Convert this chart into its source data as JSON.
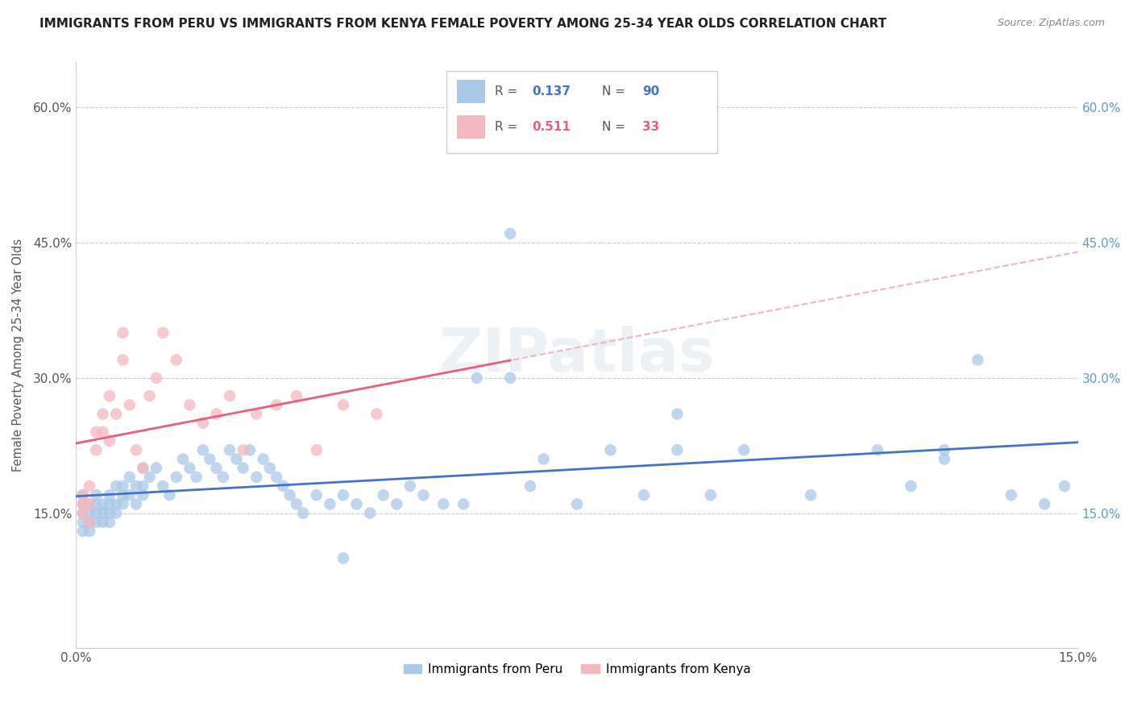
{
  "title": "IMMIGRANTS FROM PERU VS IMMIGRANTS FROM KENYA FEMALE POVERTY AMONG 25-34 YEAR OLDS CORRELATION CHART",
  "source": "Source: ZipAtlas.com",
  "ylabel": "Female Poverty Among 25-34 Year Olds",
  "xlim": [
    0.0,
    0.15
  ],
  "ylim": [
    0.0,
    0.65
  ],
  "x_tick_vals": [
    0.0,
    0.03,
    0.06,
    0.09,
    0.12,
    0.15
  ],
  "x_tick_labels": [
    "0.0%",
    "",
    "",
    "",
    "",
    "15.0%"
  ],
  "y_tick_vals": [
    0.0,
    0.15,
    0.3,
    0.45,
    0.6
  ],
  "y_tick_labels": [
    "",
    "15.0%",
    "30.0%",
    "45.0%",
    "60.0%"
  ],
  "background_color": "#ffffff",
  "grid_color": "#cccccc",
  "watermark": "ZIPatlas",
  "peru_color": "#a8c8e8",
  "kenya_color": "#f4b8c0",
  "peru_line_color": "#4472c4",
  "kenya_line_color": "#e8607a",
  "kenya_dash_color": "#f0a0b0",
  "R_peru": 0.137,
  "N_peru": 90,
  "R_kenya": 0.511,
  "N_kenya": 33,
  "peru_x": [
    0.001,
    0.001,
    0.001,
    0.001,
    0.001,
    0.002,
    0.002,
    0.002,
    0.002,
    0.003,
    0.003,
    0.003,
    0.003,
    0.004,
    0.004,
    0.004,
    0.005,
    0.005,
    0.005,
    0.005,
    0.006,
    0.006,
    0.006,
    0.007,
    0.007,
    0.007,
    0.008,
    0.008,
    0.009,
    0.009,
    0.01,
    0.01,
    0.01,
    0.011,
    0.012,
    0.013,
    0.014,
    0.015,
    0.016,
    0.017,
    0.018,
    0.019,
    0.02,
    0.021,
    0.022,
    0.023,
    0.024,
    0.025,
    0.026,
    0.027,
    0.028,
    0.029,
    0.03,
    0.031,
    0.032,
    0.033,
    0.034,
    0.036,
    0.038,
    0.04,
    0.042,
    0.044,
    0.046,
    0.048,
    0.05,
    0.052,
    0.055,
    0.058,
    0.06,
    0.065,
    0.068,
    0.07,
    0.075,
    0.08,
    0.085,
    0.09,
    0.095,
    0.1,
    0.11,
    0.12,
    0.125,
    0.13,
    0.135,
    0.14,
    0.145,
    0.148,
    0.065,
    0.09,
    0.13,
    0.04
  ],
  "peru_y": [
    0.15,
    0.14,
    0.16,
    0.13,
    0.17,
    0.15,
    0.14,
    0.16,
    0.13,
    0.16,
    0.15,
    0.14,
    0.17,
    0.15,
    0.16,
    0.14,
    0.17,
    0.15,
    0.14,
    0.16,
    0.18,
    0.16,
    0.15,
    0.17,
    0.18,
    0.16,
    0.19,
    0.17,
    0.18,
    0.16,
    0.2,
    0.18,
    0.17,
    0.19,
    0.2,
    0.18,
    0.17,
    0.19,
    0.21,
    0.2,
    0.19,
    0.22,
    0.21,
    0.2,
    0.19,
    0.22,
    0.21,
    0.2,
    0.22,
    0.19,
    0.21,
    0.2,
    0.19,
    0.18,
    0.17,
    0.16,
    0.15,
    0.17,
    0.16,
    0.17,
    0.16,
    0.15,
    0.17,
    0.16,
    0.18,
    0.17,
    0.16,
    0.16,
    0.3,
    0.3,
    0.18,
    0.21,
    0.16,
    0.22,
    0.17,
    0.22,
    0.17,
    0.22,
    0.17,
    0.22,
    0.18,
    0.22,
    0.32,
    0.17,
    0.16,
    0.18,
    0.46,
    0.26,
    0.21,
    0.1
  ],
  "kenya_x": [
    0.001,
    0.001,
    0.001,
    0.002,
    0.002,
    0.002,
    0.003,
    0.003,
    0.004,
    0.004,
    0.005,
    0.005,
    0.006,
    0.007,
    0.007,
    0.008,
    0.009,
    0.01,
    0.011,
    0.012,
    0.013,
    0.015,
    0.017,
    0.019,
    0.021,
    0.023,
    0.025,
    0.027,
    0.03,
    0.033,
    0.036,
    0.04,
    0.045
  ],
  "kenya_y": [
    0.15,
    0.17,
    0.16,
    0.18,
    0.16,
    0.14,
    0.24,
    0.22,
    0.26,
    0.24,
    0.28,
    0.23,
    0.26,
    0.35,
    0.32,
    0.27,
    0.22,
    0.2,
    0.28,
    0.3,
    0.35,
    0.32,
    0.27,
    0.25,
    0.26,
    0.28,
    0.22,
    0.26,
    0.27,
    0.28,
    0.22,
    0.27,
    0.26
  ]
}
